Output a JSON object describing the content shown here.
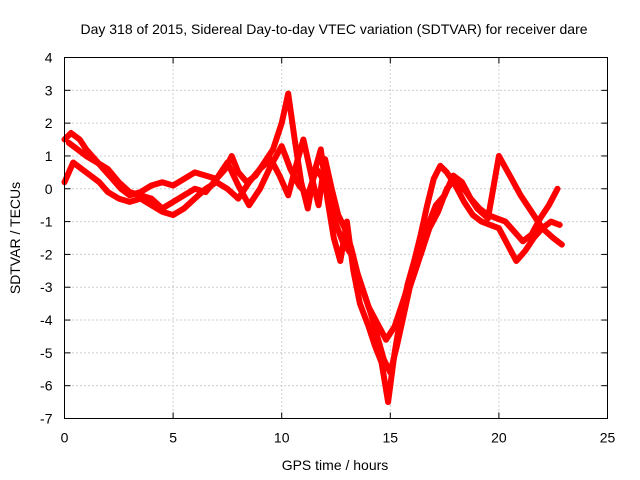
{
  "chart_data": {
    "type": "line",
    "title": "Day 318 of 2015, Sidereal Day-to-day VTEC variation (SDTVAR) for receiver dare",
    "xlabel": "GPS time / hours",
    "ylabel": "SDTVAR / TECUs",
    "xlim": [
      0,
      25
    ],
    "ylim": [
      -7,
      4
    ],
    "xticks": [
      0,
      5,
      10,
      15,
      20,
      25
    ],
    "yticks": [
      -7,
      -6,
      -5,
      -4,
      -3,
      -2,
      -1,
      0,
      1,
      2,
      3,
      4
    ],
    "grid": true,
    "color": "#ff0000",
    "series": [
      {
        "x": [
          0.0,
          0.3,
          0.7,
          1.0,
          1.4,
          1.8,
          2.2,
          2.6,
          3.0,
          3.5,
          4.0,
          4.5,
          5.0,
          5.5,
          6.0,
          6.5,
          7.0,
          7.4,
          7.7,
          8.0,
          8.4,
          8.8,
          9.2,
          9.6,
          10.0,
          10.3,
          10.6,
          10.9,
          11.2,
          11.5,
          11.8,
          12.1,
          12.4,
          12.7,
          13.0,
          13.3,
          13.6,
          14.0,
          14.3,
          14.6,
          14.9,
          15.2,
          15.5,
          15.8,
          16.1,
          16.4,
          16.7,
          17.0,
          17.3,
          17.6,
          18.0,
          18.4,
          18.8,
          19.2,
          19.6,
          20.0,
          20.4,
          20.8,
          21.2,
          21.6,
          22.0,
          22.4,
          22.8
        ],
        "y": [
          1.5,
          1.7,
          1.5,
          1.2,
          0.9,
          0.6,
          0.3,
          0.0,
          -0.2,
          -0.1,
          0.1,
          0.2,
          0.1,
          0.3,
          0.5,
          0.4,
          0.3,
          0.6,
          1.0,
          0.5,
          0.2,
          0.4,
          0.8,
          1.2,
          2.0,
          2.9,
          1.5,
          0.2,
          -0.6,
          0.5,
          1.2,
          -0.3,
          -1.5,
          -2.2,
          -1.0,
          -2.5,
          -3.5,
          -4.2,
          -4.8,
          -5.3,
          -6.5,
          -5.0,
          -3.8,
          -2.9,
          -2.2,
          -1.4,
          -0.5,
          0.3,
          0.7,
          0.5,
          0.1,
          -0.4,
          -0.8,
          -1.0,
          -1.1,
          -1.2,
          -1.7,
          -2.2,
          -1.9,
          -1.5,
          -1.2,
          -1.0,
          -1.1
        ]
      },
      {
        "x": [
          0.0,
          0.4,
          0.8,
          1.2,
          1.6,
          2.0,
          2.5,
          3.0,
          3.5,
          4.0,
          4.5,
          5.0,
          5.5,
          6.0,
          6.5,
          7.0,
          7.5,
          8.0,
          8.5,
          9.0,
          9.5,
          9.9,
          10.3,
          10.7,
          11.0,
          11.4,
          11.7,
          12.0,
          12.3,
          12.6,
          12.9,
          13.2,
          13.5,
          13.8,
          14.1,
          14.4,
          14.7,
          15.0,
          15.3,
          15.6,
          15.9,
          16.2,
          16.5,
          16.8,
          17.1,
          17.5,
          17.9,
          18.3,
          18.7,
          19.1,
          19.5,
          19.9,
          20.3,
          20.7,
          21.1,
          21.5,
          21.9,
          22.3,
          22.7
        ],
        "y": [
          0.2,
          0.8,
          0.6,
          0.4,
          0.2,
          -0.1,
          -0.3,
          -0.4,
          -0.3,
          -0.5,
          -0.7,
          -0.8,
          -0.6,
          -0.3,
          0.0,
          0.2,
          0.0,
          -0.3,
          0.2,
          0.6,
          0.9,
          0.4,
          -0.2,
          0.8,
          1.5,
          0.3,
          -0.5,
          0.9,
          0.0,
          -0.8,
          -1.2,
          -1.8,
          -2.6,
          -3.2,
          -3.8,
          -4.5,
          -5.2,
          -5.6,
          -4.8,
          -3.9,
          -3.0,
          -2.4,
          -1.8,
          -1.0,
          -0.5,
          -0.2,
          0.4,
          0.2,
          -0.3,
          -0.6,
          -0.8,
          -0.9,
          -1.0,
          -1.3,
          -1.6,
          -1.4,
          -0.9,
          -0.5,
          0.0
        ]
      },
      {
        "x": [
          0.2,
          0.6,
          1.0,
          1.5,
          2.0,
          2.5,
          3.0,
          3.5,
          4.0,
          4.5,
          5.0,
          5.5,
          6.0,
          6.5,
          7.0,
          7.5,
          8.0,
          8.5,
          9.0,
          9.5,
          10.0,
          10.4,
          10.8,
          11.2,
          11.6,
          12.0,
          12.4,
          12.8,
          13.2,
          13.6,
          14.0,
          14.4,
          14.8,
          15.2,
          15.6,
          16.0,
          16.4,
          16.8,
          17.2,
          17.6,
          18.0,
          18.5,
          19.0,
          19.5,
          20.0,
          20.5,
          21.0,
          21.5,
          22.0,
          22.5,
          22.9
        ],
        "y": [
          1.4,
          1.2,
          1.0,
          0.8,
          0.6,
          0.2,
          -0.1,
          -0.2,
          -0.3,
          -0.6,
          -0.4,
          -0.2,
          0.0,
          -0.1,
          0.3,
          0.8,
          0.1,
          -0.5,
          0.0,
          0.7,
          1.3,
          0.6,
          0.1,
          -0.2,
          0.6,
          0.2,
          -0.9,
          -1.6,
          -2.0,
          -2.8,
          -3.6,
          -4.1,
          -4.6,
          -4.2,
          -3.4,
          -2.6,
          -2.0,
          -1.2,
          -0.7,
          0.0,
          0.3,
          -0.1,
          -0.6,
          -0.9,
          1.0,
          0.4,
          -0.2,
          -0.7,
          -1.2,
          -1.5,
          -1.7
        ]
      }
    ]
  }
}
